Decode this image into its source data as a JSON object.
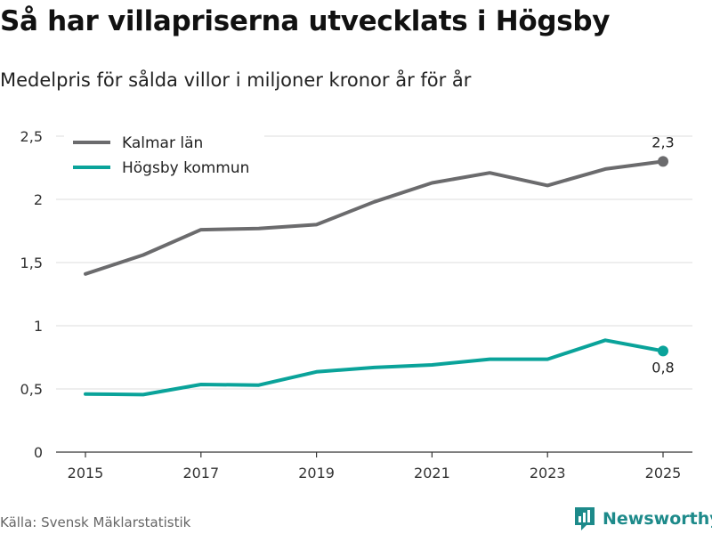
{
  "title": "Så har villapriserna utvecklats i Högsby",
  "subtitle": "Medelpris för sålda villor i miljoner kronor år för år",
  "source": "Källa: Svensk Mäklarstatistik",
  "brand": {
    "name": "Newsworthy",
    "icon": "newsworthy-logo-icon",
    "color": "#1d8a8a"
  },
  "chart_data": {
    "type": "line",
    "title": "Så har villapriserna utvecklats i Högsby",
    "subtitle": "Medelpris för sålda villor i miljoner kronor år för år",
    "xlabel": "",
    "ylabel": "",
    "x": [
      2015,
      2016,
      2017,
      2018,
      2019,
      2020,
      2021,
      2022,
      2023,
      2024,
      2025
    ],
    "xticks": [
      2015,
      2017,
      2019,
      2021,
      2023,
      2025
    ],
    "xtick_labels": [
      "2015",
      "2017",
      "2019",
      "2021",
      "2023",
      "2025"
    ],
    "ylim": [
      0,
      2.5
    ],
    "yticks": [
      0,
      0.5,
      1,
      1.5,
      2,
      2.5
    ],
    "ytick_labels": [
      "0",
      "0,5",
      "1",
      "1,5",
      "2",
      "2,5"
    ],
    "grid": true,
    "legend_position": "top-left",
    "series": [
      {
        "name": "Kalmar län",
        "color": "#6b6b6d",
        "values": [
          1.41,
          1.56,
          1.76,
          1.77,
          1.8,
          1.98,
          2.13,
          2.21,
          2.11,
          2.24,
          2.3
        ],
        "end_label": "2,3"
      },
      {
        "name": "Högsby kommun",
        "color": "#0aa39a",
        "values": [
          0.46,
          0.455,
          0.535,
          0.53,
          0.635,
          0.67,
          0.69,
          0.735,
          0.735,
          0.885,
          0.8
        ],
        "end_label": "0,8"
      }
    ]
  }
}
